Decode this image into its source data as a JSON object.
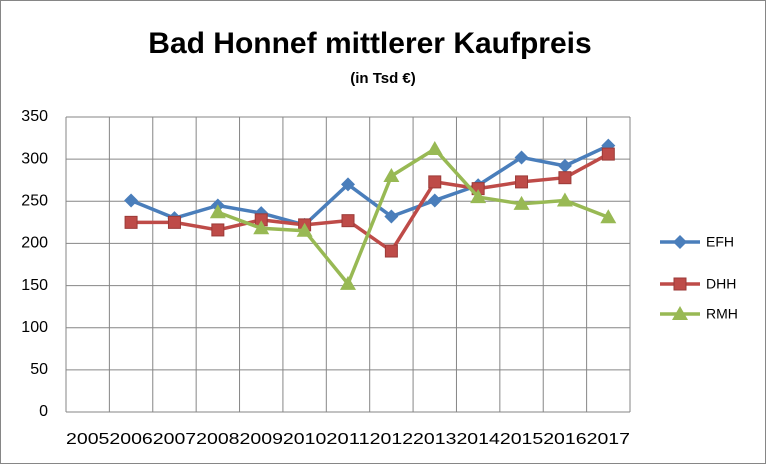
{
  "chart_data": {
    "type": "line",
    "title": "Bad Honnef mittlerer Kaufpreis",
    "subtitle": "(in Tsd  €)",
    "categories": [
      "2005",
      "2006",
      "2007",
      "2008",
      "2009",
      "2010",
      "2011",
      "2012",
      "2013",
      "2014",
      "2015",
      "2016",
      "2017"
    ],
    "series": [
      {
        "name": "EFH",
        "color": "#4a7ebb",
        "marker": "diamond",
        "values": [
          null,
          251,
          230,
          245,
          236,
          222,
          270,
          232,
          251,
          269,
          302,
          292,
          316
        ]
      },
      {
        "name": "DHH",
        "color": "#be4b48",
        "marker": "square",
        "values": [
          null,
          225,
          225,
          216,
          228,
          222,
          227,
          191,
          273,
          265,
          273,
          278,
          306
        ]
      },
      {
        "name": "RMH",
        "color": "#98b954",
        "marker": "triangle",
        "values": [
          null,
          null,
          null,
          237,
          218,
          215,
          152,
          280,
          312,
          255,
          247,
          251,
          231
        ]
      }
    ],
    "ylim": [
      0,
      350
    ],
    "yticks": [
      0,
      50,
      100,
      150,
      200,
      250,
      300,
      350
    ],
    "grid": true,
    "legend": "right"
  }
}
